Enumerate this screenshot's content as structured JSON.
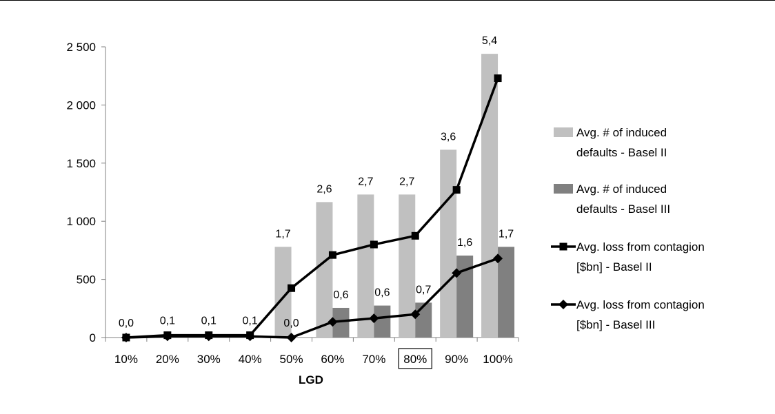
{
  "chart_data": {
    "type": "bar",
    "xlabel": "LGD",
    "ylabel": "",
    "ylim": [
      0,
      2500
    ],
    "yticks": [
      0,
      500,
      1000,
      1500,
      2000,
      2500
    ],
    "ytick_labels": [
      "0",
      "500",
      "1 000",
      "1 500",
      "2 000",
      "2 500"
    ],
    "categories": [
      "10%",
      "20%",
      "30%",
      "40%",
      "50%",
      "60%",
      "70%",
      "80%",
      "90%",
      "100%"
    ],
    "highlighted_category": "80%",
    "grid": false,
    "legend_position": "right",
    "series": [
      {
        "name_lines": [
          "Avg. # of induced",
          "defaults - Basel II"
        ],
        "kind": "bar",
        "color": "#c0c0c0",
        "values": [
          0,
          0,
          0,
          0,
          780,
          1165,
          1230,
          1230,
          1615,
          2440
        ],
        "labels": [
          "",
          "",
          "",
          "",
          "1,7",
          "2,6",
          "2,7",
          "2,7",
          "3,6",
          "5,4"
        ]
      },
      {
        "name_lines": [
          "Avg. # of induced",
          "defaults - Basel III"
        ],
        "kind": "bar",
        "color": "#808080",
        "values": [
          0,
          0,
          0,
          0,
          0,
          255,
          275,
          300,
          705,
          780
        ],
        "labels": [
          "",
          "",
          "",
          "",
          "",
          "0,6",
          "0,6",
          "0,7",
          "1,6",
          "1,7"
        ]
      },
      {
        "name_lines": [
          "Avg. loss from contagion",
          "[$bn] - Basel II"
        ],
        "kind": "line",
        "marker": "square",
        "color": "#000000",
        "values": [
          0,
          20,
          20,
          20,
          425,
          710,
          800,
          875,
          1270,
          2230
        ],
        "labels": [
          "0,0",
          "0,1",
          "0,1",
          "0,1",
          "",
          "",
          "",
          "",
          "",
          ""
        ]
      },
      {
        "name_lines": [
          "Avg. loss from contagion",
          "[$bn] - Basel III"
        ],
        "kind": "line",
        "marker": "diamond",
        "color": "#000000",
        "values": [
          0,
          10,
          10,
          10,
          0,
          135,
          165,
          200,
          555,
          680
        ],
        "labels": [
          "",
          "",
          "",
          "",
          "0,0",
          "",
          "",
          "",
          "",
          ""
        ]
      }
    ]
  }
}
